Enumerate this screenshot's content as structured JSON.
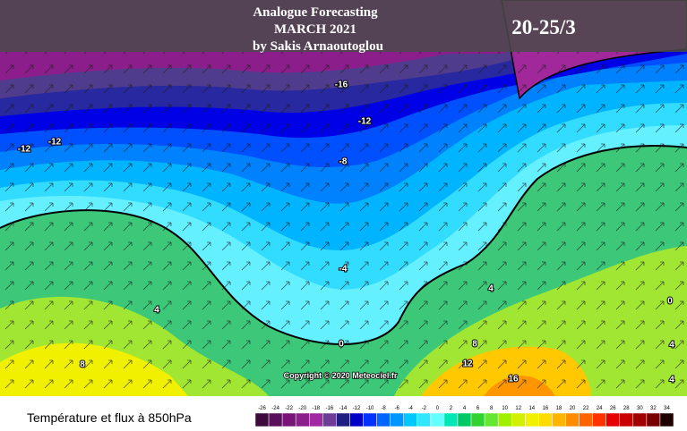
{
  "header": {
    "title": "Analogue Forecasting",
    "subtitle": "MARCH 2021",
    "author": "by Sakis Arnaoutoglou",
    "period": "20-25/3"
  },
  "map": {
    "contour_labels": [
      "-16",
      "-12",
      "-12",
      "-12",
      "-8",
      "-4",
      "0",
      "4",
      "4",
      "8",
      "8",
      "12",
      "16",
      "0",
      "4",
      "4"
    ],
    "copyright": "Copyright © 2020 Meteociel.fr"
  },
  "legend": {
    "title": "Température et flux à 850hPa",
    "ticks": [
      -26,
      -24,
      -22,
      -20,
      -18,
      -16,
      -14,
      -12,
      -10,
      -8,
      -6,
      -4,
      -2,
      0,
      2,
      4,
      6,
      8,
      10,
      12,
      14,
      16,
      18,
      20,
      22,
      24,
      26,
      28,
      30,
      32,
      34
    ],
    "colors": [
      "#3c0a3c",
      "#5a0f5a",
      "#781478",
      "#8c1e8c",
      "#a028a0",
      "#6e3c96",
      "#1e1e82",
      "#0000c8",
      "#0032ff",
      "#0064ff",
      "#0096ff",
      "#00c8ff",
      "#32e6ff",
      "#64ffff",
      "#00e6b4",
      "#00c864",
      "#32d232",
      "#64e632",
      "#a0f000",
      "#d2f000",
      "#f0f000",
      "#ffdc00",
      "#ffb400",
      "#ff8c00",
      "#ff6400",
      "#ff3200",
      "#e60000",
      "#c80000",
      "#a00000",
      "#780000",
      "#1e0000"
    ]
  }
}
